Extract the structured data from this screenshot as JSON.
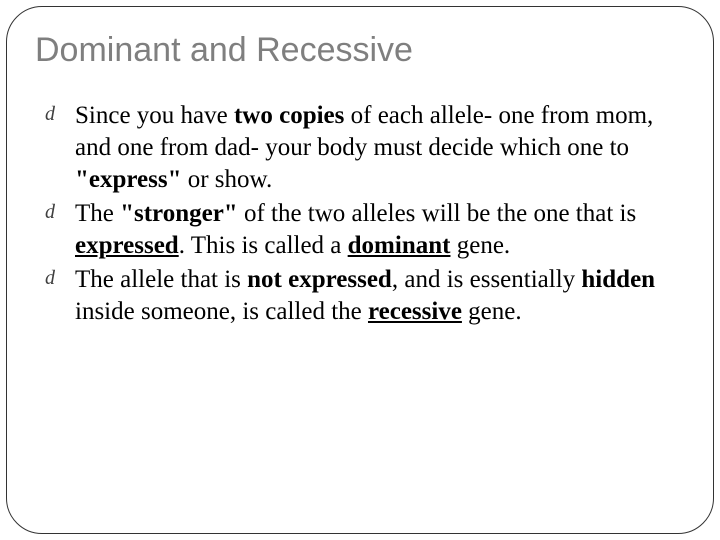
{
  "slide": {
    "title": "Dominant and Recessive",
    "bullet_glyph": "d",
    "items": [
      {
        "runs": [
          {
            "t": "Since you have ",
            "b": false,
            "u": false
          },
          {
            "t": "two copies",
            "b": true,
            "u": false
          },
          {
            "t": " of each allele- one from mom, and one from dad- your body must decide which one to ",
            "b": false,
            "u": false
          },
          {
            "t": "\"express\"",
            "b": true,
            "u": false
          },
          {
            "t": " or show.",
            "b": false,
            "u": false
          }
        ]
      },
      {
        "runs": [
          {
            "t": "The ",
            "b": false,
            "u": false
          },
          {
            "t": "\"stronger\"",
            "b": true,
            "u": false
          },
          {
            "t": " of the two alleles will be the one that is ",
            "b": false,
            "u": false
          },
          {
            "t": "expressed",
            "b": true,
            "u": true
          },
          {
            "t": ".  This is called a ",
            "b": false,
            "u": false
          },
          {
            "t": "dominant",
            "b": true,
            "u": true
          },
          {
            "t": " gene.",
            "b": false,
            "u": false
          }
        ]
      },
      {
        "runs": [
          {
            "t": "The allele that is ",
            "b": false,
            "u": false
          },
          {
            "t": "not expressed",
            "b": true,
            "u": false
          },
          {
            "t": ", and is essentially ",
            "b": false,
            "u": false
          },
          {
            "t": "hidden",
            "b": true,
            "u": false
          },
          {
            "t": " inside someone, is called the ",
            "b": false,
            "u": false
          },
          {
            "t": "recessive",
            "b": true,
            "u": true
          },
          {
            "t": " gene.",
            "b": false,
            "u": false
          }
        ]
      }
    ]
  },
  "colors": {
    "title": "#7f7f7f",
    "body": "#000000",
    "bullet": "#3f3f3f",
    "border": "#333333",
    "background": "#ffffff"
  },
  "typography": {
    "title_font": "Arial",
    "title_size_pt": 34,
    "body_font": "Times New Roman",
    "body_size_pt": 25
  }
}
